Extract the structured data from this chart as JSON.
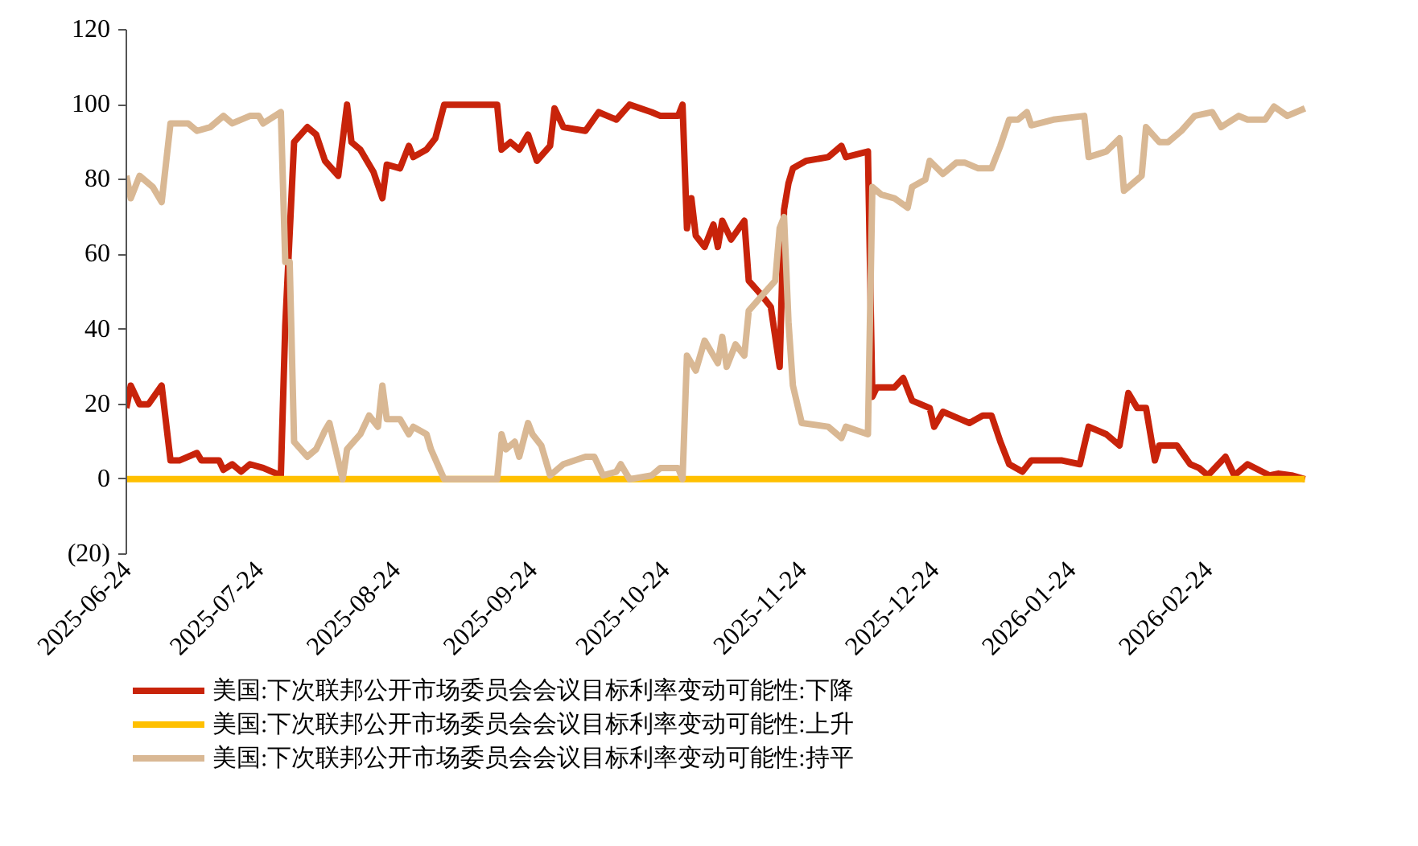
{
  "chart_data": {
    "type": "line",
    "xlim": [
      "2025-06-24",
      "2026-03-19"
    ],
    "ylim": [
      -20,
      120
    ],
    "xticks": [
      "2025-06-24",
      "2025-07-24",
      "2025-08-24",
      "2025-09-24",
      "2025-10-24",
      "2025-11-24",
      "2025-12-24",
      "2026-01-24",
      "2026-02-24"
    ],
    "yticks": [
      {
        "value": -20,
        "label": "(20)"
      },
      0,
      20,
      40,
      60,
      80,
      100,
      120
    ],
    "grid": false,
    "legend": "bottom",
    "line_style": "solid",
    "marker": "none",
    "series": [
      {
        "name": "美国:下次联邦公开市场委员会会议目标利率变动可能性:下降",
        "color": "#c8230a",
        "x": [
          "2025-06-24",
          "2025-06-25",
          "2025-06-27",
          "2025-06-29",
          "2025-07-02",
          "2025-07-04",
          "2025-07-06",
          "2025-07-10",
          "2025-07-11",
          "2025-07-15",
          "2025-07-16",
          "2025-07-18",
          "2025-07-20",
          "2025-07-22",
          "2025-07-25",
          "2025-07-29",
          "2025-07-30",
          "2025-08-01",
          "2025-08-04",
          "2025-08-06",
          "2025-08-08",
          "2025-08-11",
          "2025-08-13",
          "2025-08-14",
          "2025-08-16",
          "2025-08-19",
          "2025-08-21",
          "2025-08-22",
          "2025-08-25",
          "2025-08-27",
          "2025-08-28",
          "2025-08-31",
          "2025-09-02",
          "2025-09-04",
          "2025-09-16",
          "2025-09-17",
          "2025-09-19",
          "2025-09-21",
          "2025-09-23",
          "2025-09-25",
          "2025-09-28",
          "2025-09-29",
          "2025-10-01",
          "2025-10-06",
          "2025-10-09",
          "2025-10-13",
          "2025-10-16",
          "2025-10-21",
          "2025-10-23",
          "2025-10-27",
          "2025-10-28",
          "2025-10-29",
          "2025-10-30",
          "2025-10-31",
          "2025-11-02",
          "2025-11-04",
          "2025-11-05",
          "2025-11-06",
          "2025-11-08",
          "2025-11-11",
          "2025-11-12",
          "2025-11-15",
          "2025-11-17",
          "2025-11-19",
          "2025-11-20",
          "2025-11-21",
          "2025-11-22",
          "2025-11-25",
          "2025-11-30",
          "2025-12-03",
          "2025-12-04",
          "2025-12-09",
          "2025-12-10",
          "2025-12-11",
          "2025-12-15",
          "2025-12-17",
          "2025-12-19",
          "2025-12-23",
          "2025-12-24",
          "2025-12-26",
          "2025-12-30",
          "2026-01-01",
          "2026-01-04",
          "2026-01-06",
          "2026-01-08",
          "2026-01-10",
          "2026-01-13",
          "2026-01-15",
          "2026-01-22",
          "2026-01-26",
          "2026-01-28",
          "2026-02-01",
          "2026-02-04",
          "2026-02-06",
          "2026-02-08",
          "2026-02-10",
          "2026-02-12",
          "2026-02-13",
          "2026-02-17",
          "2026-02-20",
          "2026-02-22",
          "2026-02-24",
          "2026-02-28",
          "2026-03-02",
          "2026-03-05",
          "2026-03-10",
          "2026-03-12",
          "2026-03-15",
          "2026-03-18"
        ],
        "values": [
          19,
          25,
          20,
          20,
          25,
          5,
          5,
          7,
          5,
          5,
          2.5,
          4,
          2,
          4,
          3,
          1,
          41,
          90,
          94,
          92,
          85,
          81,
          100,
          90,
          88,
          82,
          75,
          84,
          83,
          89,
          86,
          88,
          91,
          100,
          100,
          88,
          90,
          88,
          92,
          85,
          89,
          99,
          94,
          93,
          98,
          96,
          100,
          98,
          97,
          97,
          100,
          67,
          75,
          65,
          62,
          68,
          62,
          69,
          64,
          69,
          53,
          49,
          46,
          30,
          72,
          79,
          83,
          85,
          86,
          89,
          86,
          87.5,
          22,
          24.5,
          24.5,
          27,
          21,
          19,
          14,
          18,
          16,
          15,
          17,
          17,
          10,
          4,
          2,
          5,
          5,
          4,
          14,
          12,
          9,
          23,
          19,
          19,
          5,
          9,
          9,
          4,
          3,
          1,
          6,
          1,
          4,
          1,
          1.5,
          1,
          0
        ]
      },
      {
        "name": "美国:下次联邦公开市场委员会会议目标利率变动可能性:上升",
        "color": "#ffc000",
        "x": [
          "2025-06-24",
          "2026-03-18"
        ],
        "values": [
          0,
          0
        ]
      },
      {
        "name": "美国:下次联邦公开市场委员会会议目标利率变动可能性:持平",
        "color": "#d9b894",
        "x": [
          "2025-06-24",
          "2025-06-25",
          "2025-06-27",
          "2025-06-30",
          "2025-07-02",
          "2025-07-04",
          "2025-07-08",
          "2025-07-10",
          "2025-07-13",
          "2025-07-16",
          "2025-07-18",
          "2025-07-22",
          "2025-07-24",
          "2025-07-25",
          "2025-07-29",
          "2025-07-30",
          "2025-07-31",
          "2025-08-01",
          "2025-08-04",
          "2025-08-06",
          "2025-08-08",
          "2025-08-09",
          "2025-08-12",
          "2025-08-13",
          "2025-08-16",
          "2025-08-18",
          "2025-08-20",
          "2025-08-21",
          "2025-08-22",
          "2025-08-25",
          "2025-08-27",
          "2025-08-28",
          "2025-08-31",
          "2025-09-01",
          "2025-09-04",
          "2025-09-16",
          "2025-09-17",
          "2025-09-18",
          "2025-09-20",
          "2025-09-21",
          "2025-09-23",
          "2025-09-24",
          "2025-09-26",
          "2025-09-28",
          "2025-10-01",
          "2025-10-06",
          "2025-10-08",
          "2025-10-10",
          "2025-10-13",
          "2025-10-14",
          "2025-10-16",
          "2025-10-21",
          "2025-10-23",
          "2025-10-27",
          "2025-10-28",
          "2025-10-29",
          "2025-10-31",
          "2025-11-02",
          "2025-11-05",
          "2025-11-06",
          "2025-11-07",
          "2025-11-09",
          "2025-11-11",
          "2025-11-12",
          "2025-11-15",
          "2025-11-18",
          "2025-11-19",
          "2025-11-20",
          "2025-11-21",
          "2025-11-22",
          "2025-11-24",
          "2025-11-30",
          "2025-12-03",
          "2025-12-04",
          "2025-12-09",
          "2025-12-10",
          "2025-12-12",
          "2025-12-15",
          "2025-12-18",
          "2025-12-19",
          "2025-12-22",
          "2025-12-23",
          "2025-12-26",
          "2025-12-29",
          "2025-12-31",
          "2026-01-03",
          "2026-01-06",
          "2026-01-08",
          "2026-01-10",
          "2026-01-12",
          "2026-01-14",
          "2026-01-15",
          "2026-01-20",
          "2026-01-27",
          "2026-01-28",
          "2026-02-01",
          "2026-02-04",
          "2026-02-05",
          "2026-02-09",
          "2026-02-10",
          "2026-02-13",
          "2026-02-15",
          "2026-02-18",
          "2026-02-21",
          "2026-02-25",
          "2026-02-27",
          "2026-03-03",
          "2026-03-05",
          "2026-03-09",
          "2026-03-11",
          "2026-03-14",
          "2026-03-18"
        ],
        "values": [
          81,
          75,
          81,
          78,
          74,
          95,
          95,
          93,
          94,
          97,
          95,
          97,
          97,
          95,
          98,
          58,
          58,
          10,
          6,
          8,
          13,
          15,
          0,
          8,
          12,
          17,
          14,
          25,
          16,
          16,
          12,
          14,
          12,
          8,
          0,
          0,
          12,
          8,
          10,
          6,
          15,
          12,
          9,
          1,
          4,
          6,
          6,
          1,
          2,
          4,
          0,
          1,
          3,
          3,
          0,
          33,
          29,
          37,
          31,
          38,
          30,
          36,
          33,
          45,
          49,
          53,
          67,
          70,
          42,
          25,
          15,
          14,
          11,
          14,
          12,
          78,
          76,
          75,
          72.5,
          78,
          80,
          85,
          81.5,
          84.5,
          84.5,
          83,
          83,
          89,
          96,
          96,
          98,
          94.5,
          96,
          97,
          86,
          87.5,
          91,
          77,
          81,
          94,
          90,
          90,
          93,
          97,
          98,
          94,
          97,
          96,
          96,
          99.5,
          97,
          99
        ]
      }
    ]
  }
}
